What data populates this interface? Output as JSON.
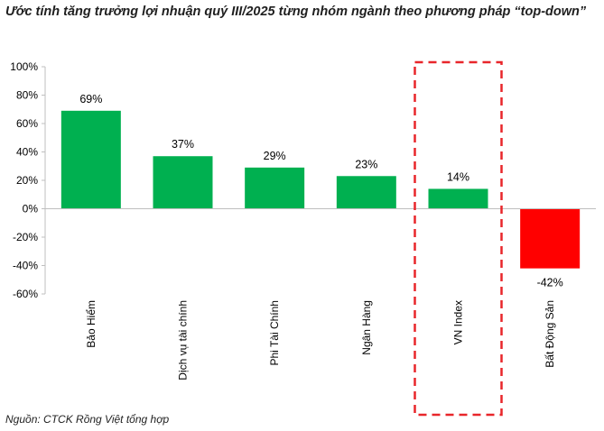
{
  "title": "Ước tính tăng trưởng lợi nhuận quý III/2025 từng nhóm ngành theo phương pháp “top-down”",
  "source": "Nguồn:  CTCK Rồng Việt tổng hợp",
  "colors": {
    "positive": "#00b050",
    "negative": "#ff0000",
    "highlight_box": "#e8262a",
    "axis": "#bfbfbf"
  },
  "chart_data": {
    "type": "bar",
    "title": "Ước tính tăng trưởng lợi nhuận quý III/2025 từng nhóm ngành theo phương pháp “top-down”",
    "xlabel": "",
    "ylabel": "",
    "categories": [
      "Bảo Hiểm",
      "Dịch vụ tài chính",
      "Phi Tài Chính",
      "Ngân Hàng",
      "VN Index",
      "Bất Động Sản"
    ],
    "values": [
      69,
      37,
      29,
      23,
      14,
      -42
    ],
    "value_labels": [
      "69%",
      "37%",
      "29%",
      "23%",
      "14%",
      "-42%"
    ],
    "ylim": [
      -60,
      100
    ],
    "yticks": [
      100,
      80,
      60,
      40,
      20,
      0,
      -20,
      -40,
      -60
    ],
    "ytick_labels": [
      "100%",
      "80%",
      "60%",
      "40%",
      "20%",
      "0%",
      "-20%",
      "-40%",
      "-60%"
    ],
    "grid": false,
    "highlighted_category": "VN Index"
  }
}
